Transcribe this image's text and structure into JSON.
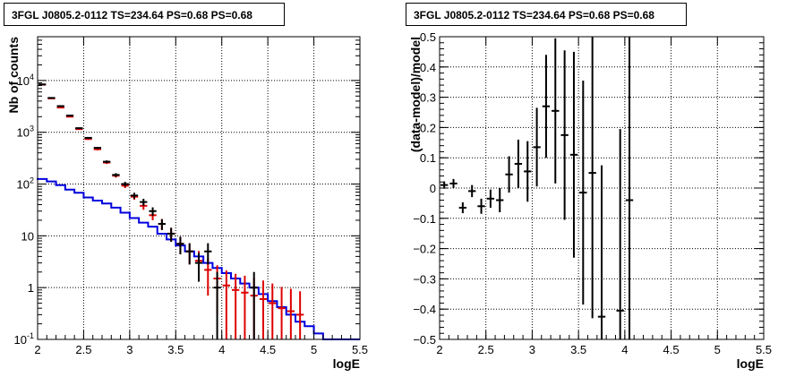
{
  "chart_data": [
    {
      "type": "line",
      "title": "3FGL J0805.2-0112 TS=234.64 PS=0.68 PS=0.68",
      "xlabel": "logE",
      "ylabel": "Nb of counts",
      "xlim": [
        2.0,
        5.5
      ],
      "ylim": [
        0.1,
        70000
      ],
      "y_scale": "log",
      "grid": true,
      "x_ticks": [
        "2",
        "2.5",
        "3",
        "3.5",
        "4",
        "4.5",
        "5",
        "5.5"
      ],
      "y_ticks": [
        {
          "value": 0.1,
          "label": "10",
          "exp": "-1"
        },
        {
          "value": 1,
          "label": "1",
          "exp": ""
        },
        {
          "value": 10,
          "label": "10",
          "exp": ""
        },
        {
          "value": 100,
          "label": "10",
          "exp": "2"
        },
        {
          "value": 1000,
          "label": "10",
          "exp": "3"
        },
        {
          "value": 10000,
          "label": "10",
          "exp": "4"
        }
      ],
      "colors": {
        "data": "#000000",
        "model": "#dd0000",
        "background": "#0000dd"
      },
      "bin_width": 0.1,
      "series": [
        {
          "kind": "data_points",
          "x": [
            2.05,
            2.15,
            2.25,
            2.35,
            2.45,
            2.55,
            2.65,
            2.75,
            2.85,
            2.95,
            3.05,
            3.15,
            3.25,
            3.35,
            3.45,
            3.55,
            3.65,
            3.75,
            3.85,
            3.95,
            4.05,
            4.15,
            4.25,
            4.35,
            4.45,
            4.55,
            4.65,
            4.75,
            4.85
          ],
          "y": [
            8400,
            4600,
            3200,
            2100,
            1200,
            780,
            500,
            270,
            150,
            100,
            60,
            45,
            30,
            17,
            11,
            7,
            5,
            3,
            5,
            1,
            0.1,
            0.1,
            0.1,
            1,
            0.1,
            0.1,
            0.1,
            0.1,
            0.1
          ],
          "y_err": [
            90,
            70,
            55,
            45,
            35,
            28,
            22,
            16,
            12,
            10,
            8,
            7,
            5.5,
            4,
            3.3,
            2.6,
            2.2,
            1.7,
            2.2,
            1,
            0,
            0,
            0,
            1,
            0,
            0,
            0,
            0,
            0
          ]
        },
        {
          "kind": "model_points",
          "x": [
            2.05,
            2.15,
            2.25,
            2.35,
            2.45,
            2.55,
            2.65,
            2.75,
            2.85,
            2.95,
            3.05,
            3.15,
            3.25,
            3.35,
            3.45,
            3.55,
            3.65,
            3.75,
            3.85,
            3.95,
            4.05,
            4.15,
            4.25,
            4.35,
            4.45,
            4.55,
            4.65,
            4.75,
            4.85
          ],
          "y": [
            8300,
            4500,
            3000,
            2000,
            1150,
            740,
            470,
            260,
            145,
            93,
            57,
            38,
            25,
            17,
            11,
            7,
            5,
            3.3,
            2.2,
            1.5,
            1.1,
            0.9,
            0.8,
            0.7,
            0.6,
            0.5,
            0.4,
            0.35,
            0.3
          ],
          "y_err": [
            90,
            67,
            55,
            45,
            34,
            27,
            22,
            16,
            12,
            9.6,
            7.5,
            6.2,
            5,
            4.1,
            3.3,
            2.6,
            2.2,
            1.8,
            1.5,
            1.2,
            1.05,
            0.95,
            0.9,
            0.84,
            0.77,
            0.7,
            0.63,
            0.6,
            0.55
          ]
        },
        {
          "kind": "background_step",
          "x": [
            1.95,
            2.05,
            2.15,
            2.25,
            2.35,
            2.45,
            2.55,
            2.65,
            2.75,
            2.85,
            2.95,
            3.05,
            3.15,
            3.25,
            3.35,
            3.45,
            3.55,
            3.65,
            3.75,
            3.85,
            3.95,
            4.05,
            4.15,
            4.25,
            4.35,
            4.45,
            4.55,
            4.65,
            4.75,
            4.85,
            4.95,
            5.05,
            5.15,
            5.25,
            5.35,
            5.45
          ],
          "y": [
            130,
            125,
            112,
            95,
            78,
            68,
            55,
            48,
            42,
            35,
            28,
            22,
            18,
            15,
            11,
            8.5,
            6.5,
            5,
            4,
            3,
            2.4,
            1.9,
            1.5,
            1.2,
            1,
            0.75,
            0.55,
            0.42,
            0.3,
            0.22,
            0.18,
            0.13,
            0.1,
            0.1,
            0.1,
            0.1
          ]
        }
      ]
    },
    {
      "type": "scatter",
      "title": "3FGL J0805.2-0112 TS=234.64 PS=0.68 PS=0.68",
      "xlabel": "logE",
      "ylabel": "(data-model)/model",
      "xlim": [
        2.0,
        5.5
      ],
      "ylim": [
        -0.5,
        0.5
      ],
      "grid": true,
      "x_ticks": [
        "2",
        "2.5",
        "3",
        "3.5",
        "4",
        "4.5",
        "5",
        "5.5"
      ],
      "y_ticks": [
        "-0.5",
        "-0.4",
        "-0.3",
        "-0.2",
        "-0.1",
        "0",
        "0.1",
        "0.2",
        "0.3",
        "0.4",
        "0.5"
      ],
      "bin_width": 0.1,
      "series": [
        {
          "kind": "residuals",
          "x": [
            2.05,
            2.15,
            2.25,
            2.35,
            2.45,
            2.55,
            2.65,
            2.75,
            2.85,
            2.95,
            3.05,
            3.15,
            3.25,
            3.35,
            3.45,
            3.55,
            3.65,
            3.75,
            3.95,
            4.05
          ],
          "y": [
            0.01,
            0.015,
            -0.065,
            -0.01,
            -0.06,
            -0.035,
            -0.04,
            0.045,
            0.08,
            0.055,
            0.135,
            0.27,
            0.255,
            0.175,
            0.11,
            -0.015,
            0.05,
            -0.425,
            -0.405,
            -0.04
          ],
          "y_err": [
            0.012,
            0.015,
            0.018,
            0.02,
            0.025,
            0.03,
            0.04,
            0.06,
            0.08,
            0.1,
            0.13,
            0.17,
            0.24,
            0.28,
            0.34,
            0.37,
            0.48,
            0.5,
            0.6,
            0.6
          ]
        }
      ]
    }
  ]
}
